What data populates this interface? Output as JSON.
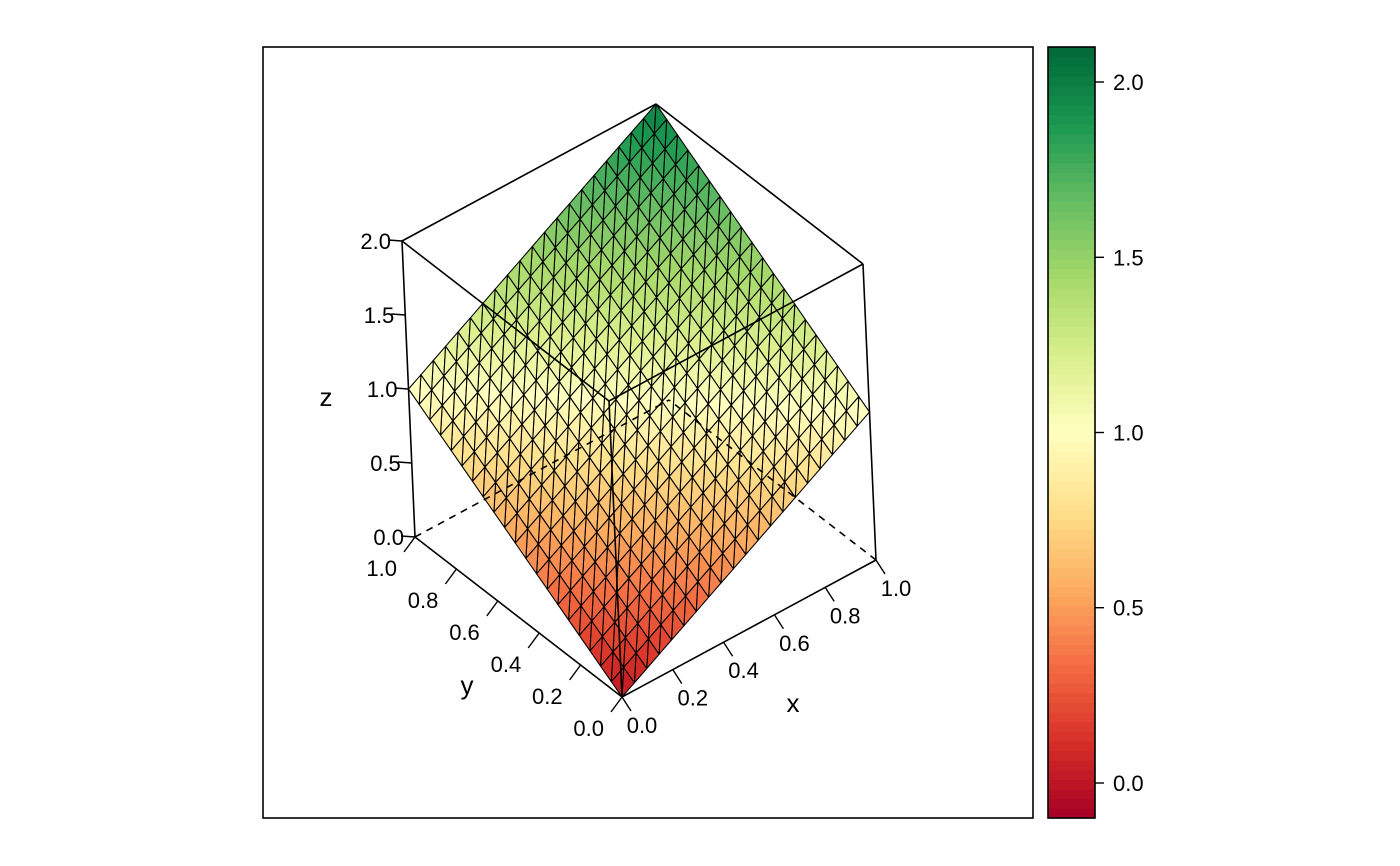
{
  "chart_data": {
    "type": "surface",
    "surface_function": "z = x + y",
    "x_grid": [
      0.0,
      0.05,
      0.1,
      0.15,
      0.2,
      0.25,
      0.3,
      0.35,
      0.4,
      0.45,
      0.5,
      0.55,
      0.6,
      0.65,
      0.7,
      0.75,
      0.8,
      0.85,
      0.9,
      0.95,
      1.0
    ],
    "y_grid": [
      0.0,
      0.05,
      0.1,
      0.15,
      0.2,
      0.25,
      0.3,
      0.35,
      0.4,
      0.45,
      0.5,
      0.55,
      0.6,
      0.65,
      0.7,
      0.75,
      0.8,
      0.85,
      0.9,
      0.95,
      1.0
    ],
    "corners": [
      {
        "x": 0,
        "y": 0,
        "z": 0
      },
      {
        "x": 1,
        "y": 0,
        "z": 1
      },
      {
        "x": 0,
        "y": 1,
        "z": 1
      },
      {
        "x": 1,
        "y": 1,
        "z": 2
      }
    ],
    "xlabel": "x",
    "ylabel": "y",
    "zlabel": "z",
    "xlim": [
      0,
      1
    ],
    "ylim": [
      0,
      1
    ],
    "zlim": [
      0,
      2
    ],
    "x_ticks": [
      "0.0",
      "0.2",
      "0.4",
      "0.6",
      "0.8",
      "1.0"
    ],
    "y_ticks": [
      "0.0",
      "0.2",
      "0.4",
      "0.6",
      "0.8",
      "1.0"
    ],
    "z_ticks": [
      "0.0",
      "0.5",
      "1.0",
      "1.5",
      "2.0"
    ],
    "colorbar": {
      "range": [
        -0.1,
        2.1
      ],
      "ticks": [
        "0.0",
        "0.5",
        "1.0",
        "1.5",
        "2.0"
      ],
      "palette": "RdYlGn",
      "colors": [
        "#a50026",
        "#d73027",
        "#f46d43",
        "#fdae61",
        "#fee08b",
        "#ffffbf",
        "#d9ef8b",
        "#a6d96a",
        "#66bd63",
        "#1a9850",
        "#006837"
      ]
    },
    "grid": true,
    "legend": "colorbar-right"
  }
}
